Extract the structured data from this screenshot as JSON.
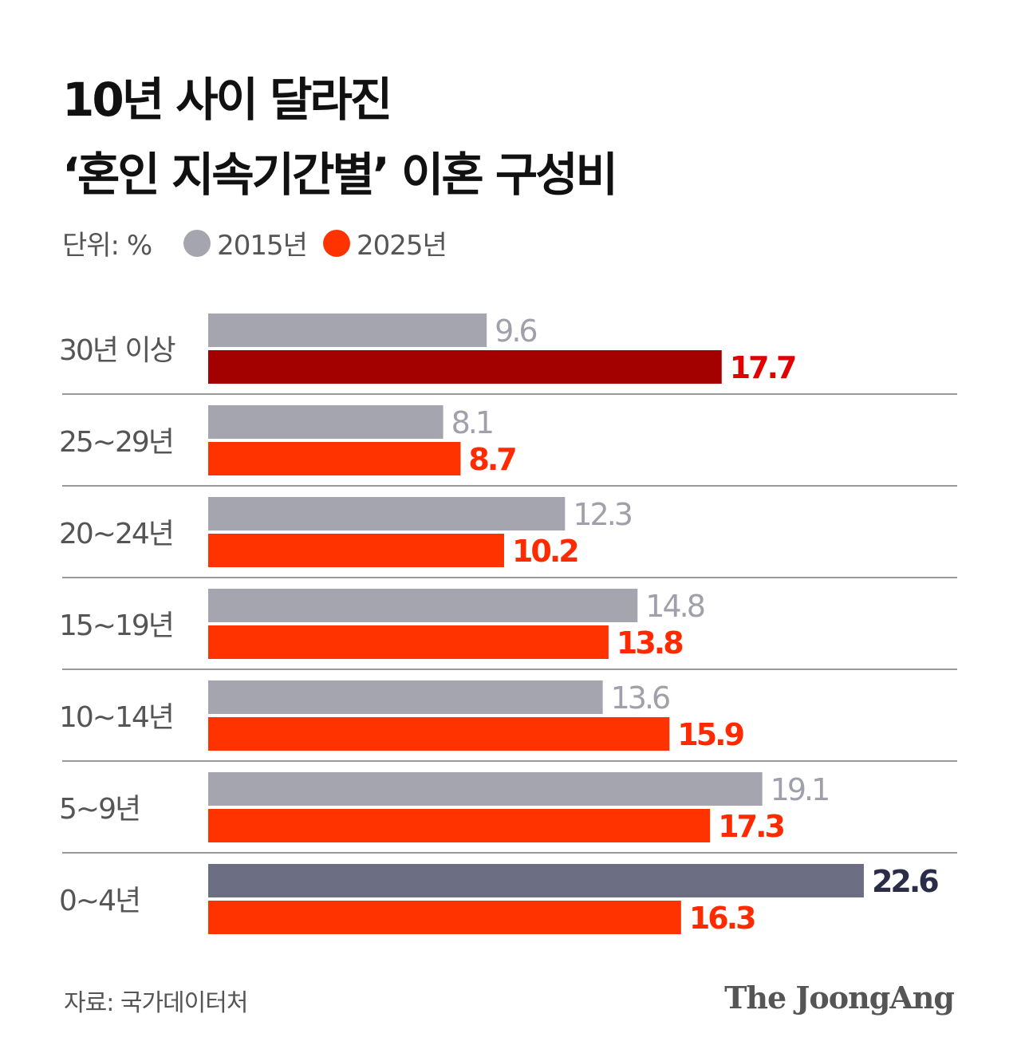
{
  "title_line1": "10년 사이 달라진",
  "title_line2": "‘혼인 지속기간별’ 이혼 구성비",
  "unit_label": "단위: %",
  "source": "자료: 국가데이터처",
  "logo": "The JoongAng",
  "colors": {
    "s2015": "#a5a5b0",
    "s2025": "#ff3300",
    "s2015_highlight": "#6c6f84",
    "s2025_highlight": "#a30000",
    "label2015": "#a0a0ab",
    "label2025": "#ff2a00",
    "label2025_highlight": "#e00000",
    "label2015_highlight": "#2a2d48"
  },
  "chart_data": {
    "type": "bar",
    "orientation": "horizontal",
    "categories": [
      "30년 이상",
      "25~29년",
      "20~24년",
      "15~19년",
      "10~14년",
      "5~9년",
      "0~4년"
    ],
    "series": [
      {
        "name": "2015년",
        "values": [
          9.6,
          8.1,
          12.3,
          14.8,
          13.6,
          19.1,
          22.6
        ]
      },
      {
        "name": "2025년",
        "values": [
          17.7,
          8.7,
          10.2,
          13.8,
          15.9,
          17.3,
          16.3
        ]
      }
    ],
    "highlights": {
      "2015년": "0~4년",
      "2025년": "30년 이상"
    },
    "legend": "top-left",
    "grid": false
  }
}
